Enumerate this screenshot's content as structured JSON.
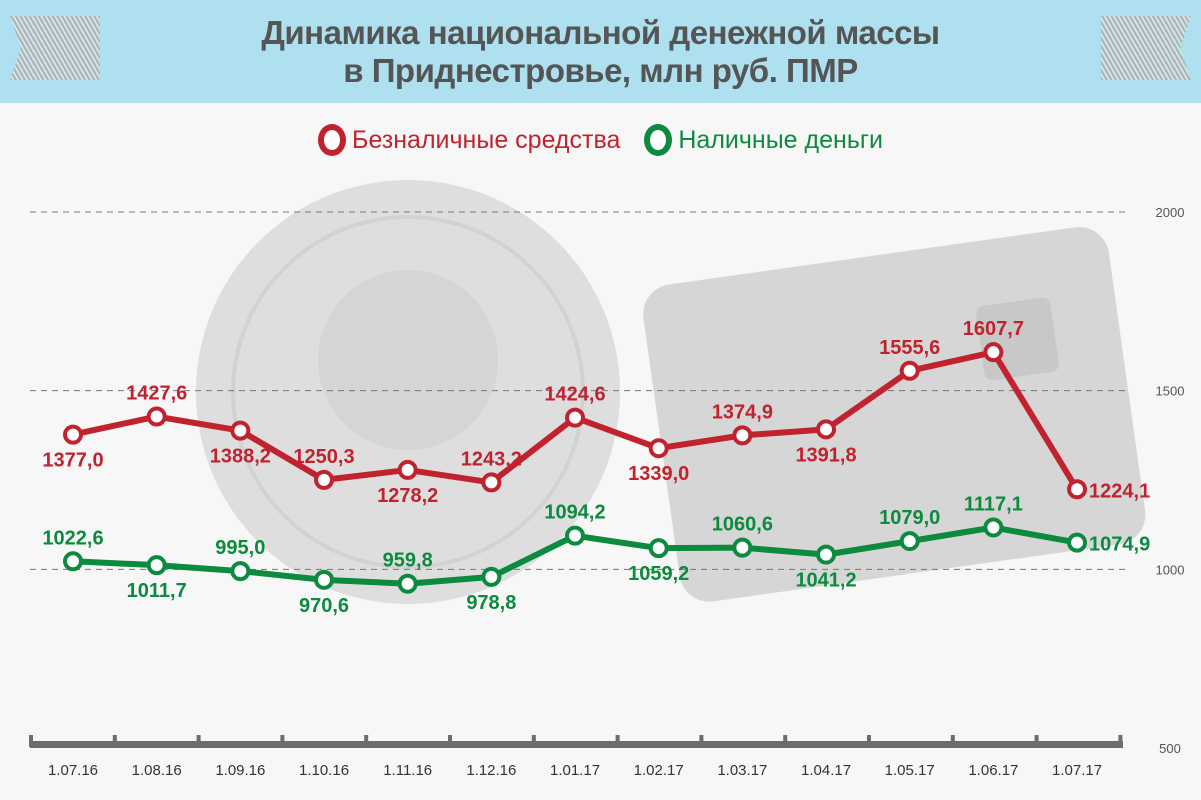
{
  "title_line1": "Динамика национальной денежной массы",
  "title_line2": "в Приднестровье, млн руб. ПМР",
  "colors": {
    "red": "#c0232e",
    "green": "#0c8a3e"
  },
  "chart_data": {
    "type": "line",
    "title": "Динамика национальной денежной массы в Приднестровье, млн руб. ПМР",
    "categories": [
      "1.07.16",
      "1.08.16",
      "1.09.16",
      "1.10.16",
      "1.11.16",
      "1.12.16",
      "1.01.17",
      "1.02.17",
      "1.03.17",
      "1.04.17",
      "1.05.17",
      "1.06.17",
      "1.07.17"
    ],
    "series": [
      {
        "name": "Безналичные средства",
        "color": "#c0232e",
        "values": [
          1377.0,
          1427.6,
          1388.2,
          1250.3,
          1278.2,
          1243.2,
          1424.6,
          1339.0,
          1374.9,
          1391.8,
          1555.6,
          1607.7,
          1224.1
        ],
        "labels": [
          "1377,0",
          "1427,6",
          "1388,2",
          "1250,3",
          "1278,2",
          "1243,2",
          "1424,6",
          "1339,0",
          "1374,9",
          "1391,8",
          "1555,6",
          "1607,7",
          "1224,1"
        ]
      },
      {
        "name": "Наличные деньги",
        "color": "#0c8a3e",
        "values": [
          1022.6,
          1011.7,
          995.0,
          970.6,
          959.8,
          978.8,
          1094.2,
          1059.2,
          1060.6,
          1041.2,
          1079.0,
          1117.1,
          1074.9
        ],
        "labels": [
          "1022,6",
          "1011,7",
          "995,0",
          "970,6",
          "959,8",
          "978,8",
          "1094,2",
          "1059,2",
          "1060,6",
          "1041,2",
          "1079,0",
          "1117,1",
          "1074,9"
        ]
      }
    ],
    "yticks": [
      "500",
      "1000",
      "1500",
      "2000"
    ],
    "ylim": [
      500,
      2000
    ],
    "grid": true,
    "legend": "top-center"
  }
}
